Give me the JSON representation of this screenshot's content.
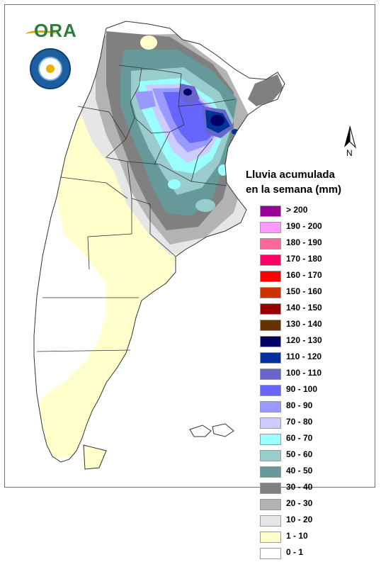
{
  "logo": {
    "ora_text": "ORA"
  },
  "north_arrow": {
    "letter": "N"
  },
  "legend": {
    "title_line1": "Lluvia acumulada",
    "title_line2": "en la semana (mm)",
    "items": [
      {
        "label": "> 200",
        "color": "#990099"
      },
      {
        "label": "190 - 200",
        "color": "#ff99ff"
      },
      {
        "label": "180 - 190",
        "color": "#ff6699"
      },
      {
        "label": "170 - 180",
        "color": "#ff0066"
      },
      {
        "label": "160 - 170",
        "color": "#ff0000"
      },
      {
        "label": "150 - 160",
        "color": "#cc3300"
      },
      {
        "label": "140 - 150",
        "color": "#990000"
      },
      {
        "label": "130 - 140",
        "color": "#663300"
      },
      {
        "label": "120 - 130",
        "color": "#000066"
      },
      {
        "label": "110 - 120",
        "color": "#003399"
      },
      {
        "label": "100 - 110",
        "color": "#6666cc"
      },
      {
        "label": "90 - 100",
        "color": "#6666ff"
      },
      {
        "label": "80 - 90",
        "color": "#9999ff"
      },
      {
        "label": "70 - 80",
        "color": "#ccccff"
      },
      {
        "label": "60 - 70",
        "color": "#99ffff"
      },
      {
        "label": "50 - 60",
        "color": "#99cccc"
      },
      {
        "label": "40 - 50",
        "color": "#669999"
      },
      {
        "label": "30 - 40",
        "color": "#808080"
      },
      {
        "label": "20 - 30",
        "color": "#b3b3b3"
      },
      {
        "label": "10 - 20",
        "color": "#e6e6e6"
      },
      {
        "label": "1 - 10",
        "color": "#ffffcc"
      },
      {
        "label": "0 - 1",
        "color": "#ffffff"
      }
    ]
  }
}
